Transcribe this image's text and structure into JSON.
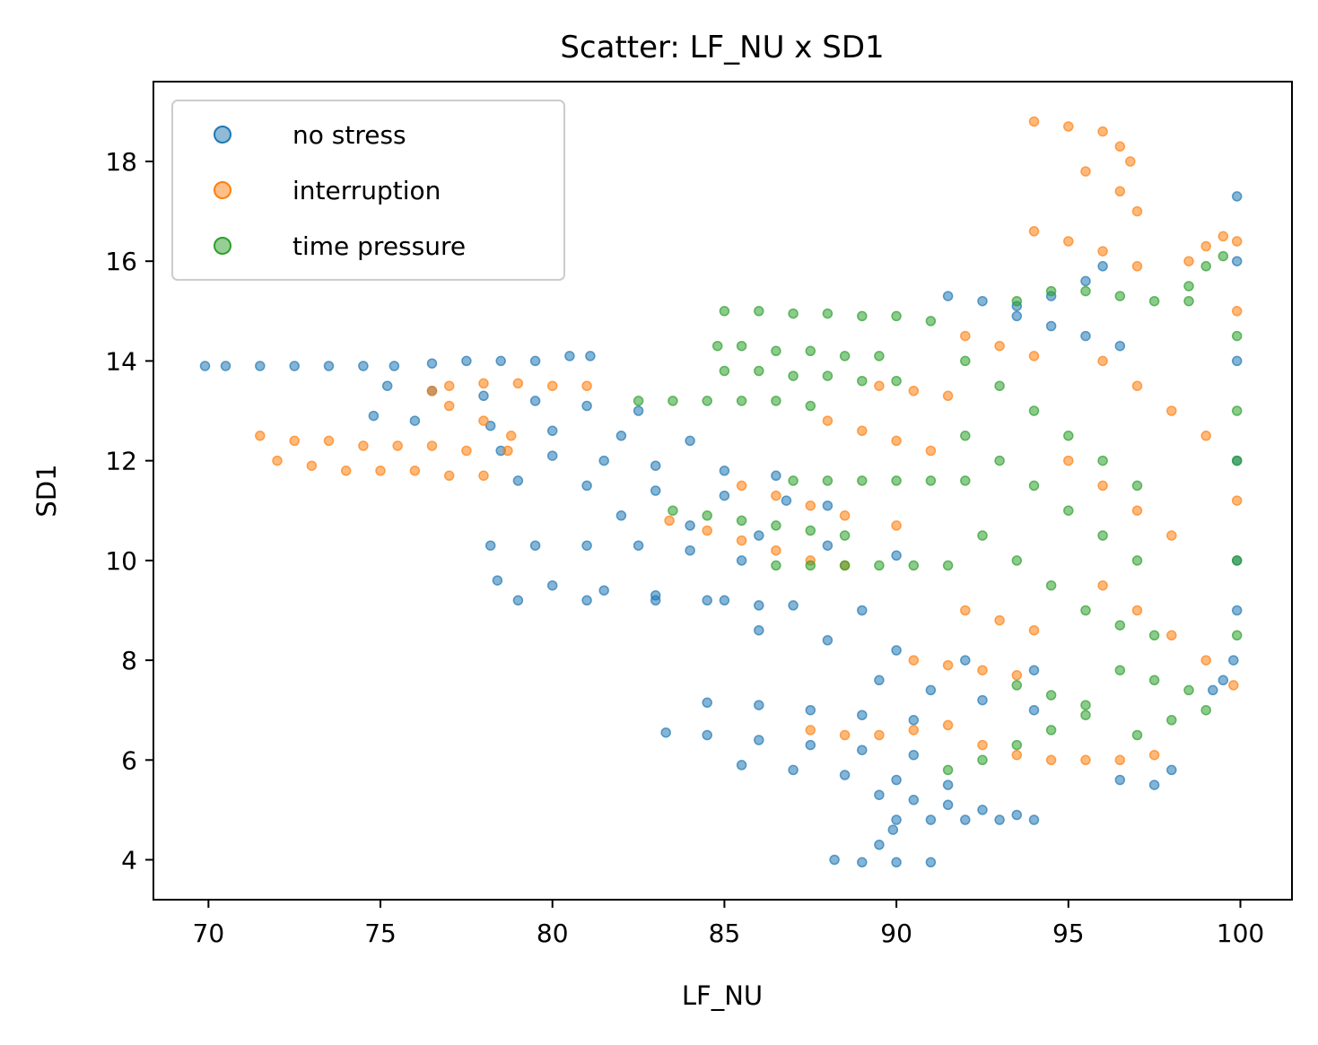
{
  "chart_data": {
    "type": "scatter",
    "title": "Scatter: LF_NU x SD1",
    "xlabel": "LF_NU",
    "ylabel": "SD1",
    "xlim": [
      68.4,
      101.5
    ],
    "ylim": [
      3.2,
      19.6
    ],
    "xticks": [
      70,
      75,
      80,
      85,
      90,
      95,
      100
    ],
    "yticks": [
      4,
      6,
      8,
      10,
      12,
      14,
      16,
      18
    ],
    "grid": false,
    "legend_position": "top-left",
    "series": [
      {
        "name": "no stress",
        "color": "#1f77b4",
        "points": [
          [
            69.9,
            13.9
          ],
          [
            70.5,
            13.9
          ],
          [
            71.5,
            13.9
          ],
          [
            72.5,
            13.9
          ],
          [
            73.5,
            13.9
          ],
          [
            74.5,
            13.9
          ],
          [
            75.4,
            13.9
          ],
          [
            76.5,
            13.95
          ],
          [
            77.5,
            14.0
          ],
          [
            78.5,
            14.0
          ],
          [
            79.5,
            14.0
          ],
          [
            80.5,
            14.1
          ],
          [
            81.1,
            14.1
          ],
          [
            75.2,
            13.5
          ],
          [
            76.5,
            13.4
          ],
          [
            78.0,
            13.3
          ],
          [
            79.5,
            13.2
          ],
          [
            81.0,
            13.1
          ],
          [
            82.5,
            13.0
          ],
          [
            74.8,
            12.9
          ],
          [
            76.0,
            12.8
          ],
          [
            78.2,
            12.7
          ],
          [
            80.0,
            12.6
          ],
          [
            82.0,
            12.5
          ],
          [
            84.0,
            12.4
          ],
          [
            78.5,
            12.2
          ],
          [
            80.0,
            12.1
          ],
          [
            81.5,
            12.0
          ],
          [
            83.0,
            11.9
          ],
          [
            85.0,
            11.8
          ],
          [
            86.5,
            11.7
          ],
          [
            79.0,
            11.6
          ],
          [
            81.0,
            11.5
          ],
          [
            83.0,
            11.4
          ],
          [
            85.0,
            11.3
          ],
          [
            86.8,
            11.2
          ],
          [
            88.0,
            11.1
          ],
          [
            82.0,
            10.9
          ],
          [
            84.0,
            10.7
          ],
          [
            86.0,
            10.5
          ],
          [
            88.0,
            10.3
          ],
          [
            90.0,
            10.1
          ],
          [
            78.2,
            10.3
          ],
          [
            79.5,
            10.3
          ],
          [
            81.0,
            10.3
          ],
          [
            82.5,
            10.3
          ],
          [
            84.0,
            10.2
          ],
          [
            85.5,
            10.0
          ],
          [
            78.4,
            9.6
          ],
          [
            80.0,
            9.5
          ],
          [
            81.5,
            9.4
          ],
          [
            83.0,
            9.3
          ],
          [
            84.5,
            9.2
          ],
          [
            86.0,
            9.1
          ],
          [
            79.0,
            9.2
          ],
          [
            81.0,
            9.2
          ],
          [
            83.0,
            9.2
          ],
          [
            85.0,
            9.2
          ],
          [
            87.0,
            9.1
          ],
          [
            89.0,
            9.0
          ],
          [
            86.0,
            8.6
          ],
          [
            88.0,
            8.4
          ],
          [
            90.0,
            8.2
          ],
          [
            92.0,
            8.0
          ],
          [
            94.0,
            7.8
          ],
          [
            89.5,
            7.6
          ],
          [
            91.0,
            7.4
          ],
          [
            92.5,
            7.2
          ],
          [
            94.0,
            7.0
          ],
          [
            84.5,
            7.15
          ],
          [
            86.0,
            7.1
          ],
          [
            87.5,
            7.0
          ],
          [
            89.0,
            6.9
          ],
          [
            90.5,
            6.8
          ],
          [
            83.3,
            6.55
          ],
          [
            84.5,
            6.5
          ],
          [
            86.0,
            6.4
          ],
          [
            87.5,
            6.3
          ],
          [
            89.0,
            6.2
          ],
          [
            90.5,
            6.1
          ],
          [
            85.5,
            5.9
          ],
          [
            87.0,
            5.8
          ],
          [
            88.5,
            5.7
          ],
          [
            90.0,
            5.6
          ],
          [
            91.5,
            5.5
          ],
          [
            89.5,
            5.3
          ],
          [
            90.5,
            5.2
          ],
          [
            91.5,
            5.1
          ],
          [
            92.5,
            5.0
          ],
          [
            93.5,
            4.9
          ],
          [
            90.0,
            4.8
          ],
          [
            91.0,
            4.8
          ],
          [
            92.0,
            4.8
          ],
          [
            93.0,
            4.8
          ],
          [
            94.0,
            4.8
          ],
          [
            88.2,
            4.0
          ],
          [
            89.0,
            3.95
          ],
          [
            90.0,
            3.95
          ],
          [
            91.0,
            3.95
          ],
          [
            89.5,
            4.3
          ],
          [
            89.9,
            4.6
          ],
          [
            91.5,
            15.3
          ],
          [
            92.5,
            15.2
          ],
          [
            93.5,
            15.1
          ],
          [
            94.5,
            15.3
          ],
          [
            95.5,
            15.6
          ],
          [
            96.0,
            15.9
          ],
          [
            93.5,
            14.9
          ],
          [
            94.5,
            14.7
          ],
          [
            95.5,
            14.5
          ],
          [
            96.5,
            14.3
          ],
          [
            96.5,
            5.6
          ],
          [
            97.5,
            5.5
          ],
          [
            98.0,
            5.8
          ],
          [
            99.2,
            7.4
          ],
          [
            99.5,
            7.6
          ],
          [
            99.8,
            8.0
          ],
          [
            99.9,
            9.0
          ],
          [
            99.9,
            10.0
          ],
          [
            99.9,
            12.0
          ],
          [
            99.9,
            14.0
          ],
          [
            99.9,
            16.0
          ],
          [
            99.9,
            17.3
          ]
        ]
      },
      {
        "name": "interruption",
        "color": "#ff7f0e",
        "points": [
          [
            71.5,
            12.5
          ],
          [
            72.5,
            12.4
          ],
          [
            73.5,
            12.4
          ],
          [
            74.5,
            12.3
          ],
          [
            75.5,
            12.3
          ],
          [
            76.5,
            12.3
          ],
          [
            77.5,
            12.2
          ],
          [
            72.0,
            12.0
          ],
          [
            73.0,
            11.9
          ],
          [
            74.0,
            11.8
          ],
          [
            75.0,
            11.8
          ],
          [
            76.0,
            11.8
          ],
          [
            77.0,
            11.7
          ],
          [
            78.0,
            11.7
          ],
          [
            78.7,
            12.2
          ],
          [
            78.8,
            12.5
          ],
          [
            78.0,
            12.8
          ],
          [
            77.0,
            13.1
          ],
          [
            76.5,
            13.4
          ],
          [
            77.0,
            13.5
          ],
          [
            78.0,
            13.55
          ],
          [
            79.0,
            13.55
          ],
          [
            80.0,
            13.5
          ],
          [
            81.0,
            13.5
          ],
          [
            83.4,
            10.8
          ],
          [
            84.5,
            10.6
          ],
          [
            85.5,
            10.4
          ],
          [
            86.5,
            10.2
          ],
          [
            87.5,
            10.0
          ],
          [
            88.5,
            9.9
          ],
          [
            85.5,
            11.5
          ],
          [
            86.5,
            11.3
          ],
          [
            87.5,
            11.1
          ],
          [
            88.5,
            10.9
          ],
          [
            90.0,
            10.7
          ],
          [
            88.0,
            12.8
          ],
          [
            89.0,
            12.6
          ],
          [
            90.0,
            12.4
          ],
          [
            91.0,
            12.2
          ],
          [
            89.5,
            13.5
          ],
          [
            90.5,
            13.4
          ],
          [
            91.5,
            13.3
          ],
          [
            92.0,
            14.5
          ],
          [
            93.0,
            14.3
          ],
          [
            94.0,
            14.1
          ],
          [
            92.0,
            9.0
          ],
          [
            93.0,
            8.8
          ],
          [
            94.0,
            8.6
          ],
          [
            90.5,
            8.0
          ],
          [
            91.5,
            7.9
          ],
          [
            92.5,
            7.8
          ],
          [
            93.5,
            7.7
          ],
          [
            87.5,
            6.6
          ],
          [
            88.5,
            6.5
          ],
          [
            89.5,
            6.5
          ],
          [
            90.5,
            6.6
          ],
          [
            91.5,
            6.7
          ],
          [
            92.5,
            6.3
          ],
          [
            93.5,
            6.1
          ],
          [
            94.5,
            6.0
          ],
          [
            95.5,
            6.0
          ],
          [
            96.5,
            6.0
          ],
          [
            97.5,
            6.1
          ],
          [
            94.0,
            18.8
          ],
          [
            95.0,
            18.7
          ],
          [
            96.0,
            18.6
          ],
          [
            96.5,
            18.3
          ],
          [
            96.8,
            18.0
          ],
          [
            95.5,
            17.8
          ],
          [
            96.5,
            17.4
          ],
          [
            97.0,
            17.0
          ],
          [
            94.0,
            16.6
          ],
          [
            95.0,
            16.4
          ],
          [
            96.0,
            16.2
          ],
          [
            97.0,
            15.9
          ],
          [
            96.0,
            14.0
          ],
          [
            97.0,
            13.5
          ],
          [
            98.0,
            13.0
          ],
          [
            99.0,
            12.5
          ],
          [
            95.0,
            12.0
          ],
          [
            96.0,
            11.5
          ],
          [
            97.0,
            11.0
          ],
          [
            98.0,
            10.5
          ],
          [
            96.0,
            9.5
          ],
          [
            97.0,
            9.0
          ],
          [
            98.0,
            8.5
          ],
          [
            99.0,
            8.0
          ],
          [
            98.5,
            16.0
          ],
          [
            99.0,
            16.3
          ],
          [
            99.5,
            16.5
          ],
          [
            99.9,
            16.4
          ],
          [
            99.9,
            15.0
          ],
          [
            99.9,
            11.2
          ],
          [
            99.8,
            7.5
          ]
        ]
      },
      {
        "name": "time pressure",
        "color": "#2ca02c",
        "points": [
          [
            85.0,
            15.0
          ],
          [
            86.0,
            15.0
          ],
          [
            87.0,
            14.95
          ],
          [
            88.0,
            14.95
          ],
          [
            89.0,
            14.9
          ],
          [
            90.0,
            14.9
          ],
          [
            91.0,
            14.8
          ],
          [
            84.8,
            14.3
          ],
          [
            85.5,
            14.3
          ],
          [
            86.5,
            14.2
          ],
          [
            87.5,
            14.2
          ],
          [
            88.5,
            14.1
          ],
          [
            89.5,
            14.1
          ],
          [
            85.0,
            13.8
          ],
          [
            86.0,
            13.8
          ],
          [
            87.0,
            13.7
          ],
          [
            88.0,
            13.7
          ],
          [
            89.0,
            13.6
          ],
          [
            90.0,
            13.6
          ],
          [
            82.5,
            13.2
          ],
          [
            83.5,
            13.2
          ],
          [
            84.5,
            13.2
          ],
          [
            85.5,
            13.2
          ],
          [
            86.5,
            13.2
          ],
          [
            87.5,
            13.1
          ],
          [
            87.0,
            11.6
          ],
          [
            88.0,
            11.6
          ],
          [
            89.0,
            11.6
          ],
          [
            90.0,
            11.6
          ],
          [
            91.0,
            11.6
          ],
          [
            92.0,
            11.6
          ],
          [
            83.5,
            11.0
          ],
          [
            84.5,
            10.9
          ],
          [
            85.5,
            10.8
          ],
          [
            86.5,
            10.7
          ],
          [
            87.5,
            10.6
          ],
          [
            88.5,
            10.5
          ],
          [
            86.5,
            9.9
          ],
          [
            87.5,
            9.9
          ],
          [
            88.5,
            9.9
          ],
          [
            89.5,
            9.9
          ],
          [
            90.5,
            9.9
          ],
          [
            91.5,
            9.9
          ],
          [
            93.5,
            15.2
          ],
          [
            94.5,
            15.4
          ],
          [
            95.5,
            15.4
          ],
          [
            96.5,
            15.3
          ],
          [
            97.5,
            15.2
          ],
          [
            98.5,
            15.2
          ],
          [
            92.0,
            14.0
          ],
          [
            93.0,
            13.5
          ],
          [
            94.0,
            13.0
          ],
          [
            95.0,
            12.5
          ],
          [
            96.0,
            12.0
          ],
          [
            97.0,
            11.5
          ],
          [
            92.0,
            12.5
          ],
          [
            93.0,
            12.0
          ],
          [
            94.0,
            11.5
          ],
          [
            95.0,
            11.0
          ],
          [
            96.0,
            10.5
          ],
          [
            97.0,
            10.0
          ],
          [
            92.5,
            10.5
          ],
          [
            93.5,
            10.0
          ],
          [
            94.5,
            9.5
          ],
          [
            95.5,
            9.0
          ],
          [
            96.5,
            8.7
          ],
          [
            97.5,
            8.5
          ],
          [
            93.5,
            7.5
          ],
          [
            94.5,
            7.3
          ],
          [
            95.5,
            7.1
          ],
          [
            96.5,
            7.8
          ],
          [
            97.5,
            7.6
          ],
          [
            98.5,
            7.4
          ],
          [
            91.5,
            5.8
          ],
          [
            92.5,
            6.0
          ],
          [
            93.5,
            6.3
          ],
          [
            94.5,
            6.6
          ],
          [
            95.5,
            6.9
          ],
          [
            97.0,
            6.5
          ],
          [
            98.0,
            6.8
          ],
          [
            99.0,
            7.0
          ],
          [
            98.5,
            15.5
          ],
          [
            99.0,
            15.9
          ],
          [
            99.5,
            16.1
          ],
          [
            99.9,
            14.5
          ],
          [
            99.9,
            13.0
          ],
          [
            99.9,
            12.0
          ],
          [
            99.9,
            10.0
          ],
          [
            99.9,
            8.5
          ]
        ]
      }
    ]
  }
}
